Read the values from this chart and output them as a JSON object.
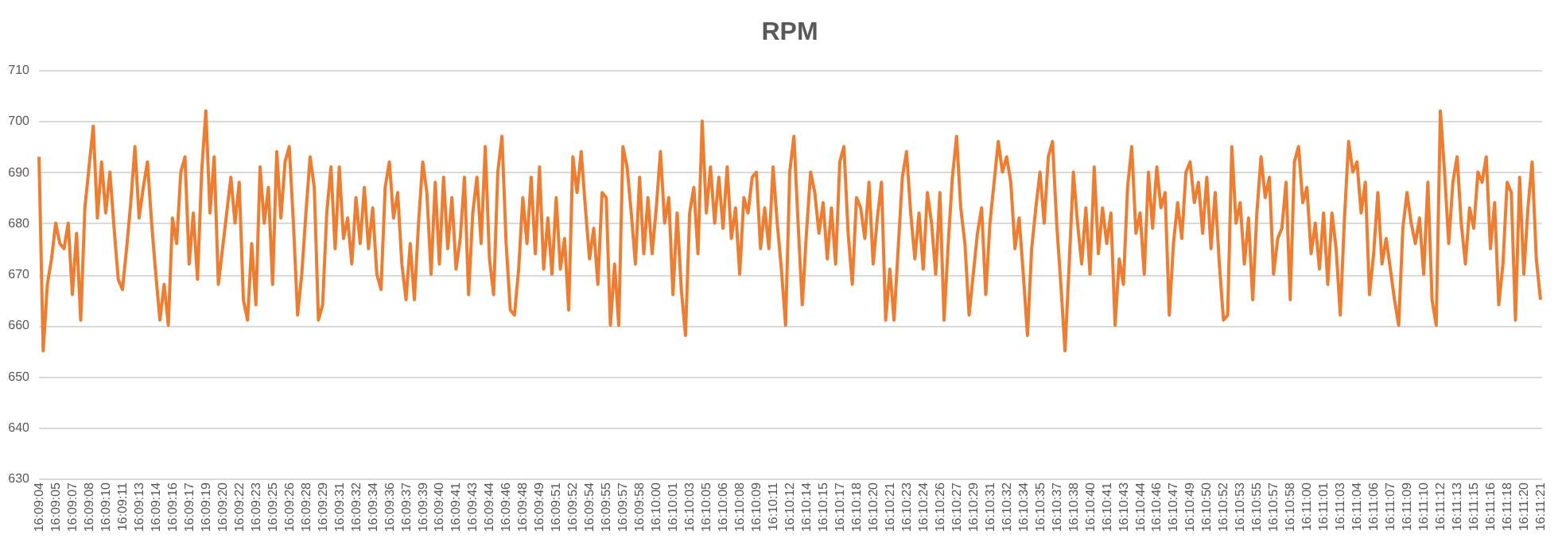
{
  "chart_data": {
    "type": "line",
    "title": "RPM",
    "categories": [
      "16:09:04",
      null,
      null,
      null,
      "16:09:05",
      null,
      null,
      null,
      "16:09:07",
      null,
      null,
      null,
      "16:09:08",
      null,
      null,
      null,
      "16:09:10",
      null,
      null,
      null,
      "16:09:11",
      null,
      null,
      null,
      "16:09:13",
      null,
      null,
      null,
      "16:09:14",
      null,
      null,
      null,
      "16:09:16",
      null,
      null,
      null,
      "16:09:17",
      null,
      null,
      null,
      "16:09:19",
      null,
      null,
      null,
      "16:09:20",
      null,
      null,
      null,
      "16:09:22",
      null,
      null,
      null,
      "16:09:23",
      null,
      null,
      null,
      "16:09:25",
      null,
      null,
      null,
      "16:09:26",
      null,
      null,
      null,
      "16:09:28",
      null,
      null,
      null,
      "16:09:29",
      null,
      null,
      null,
      "16:09:31",
      null,
      null,
      null,
      "16:09:32",
      null,
      null,
      null,
      "16:09:34",
      null,
      null,
      null,
      "16:09:36",
      null,
      null,
      null,
      "16:09:37",
      null,
      null,
      null,
      "16:09:39",
      null,
      null,
      null,
      "16:09:40",
      null,
      null,
      null,
      "16:09:41",
      null,
      null,
      null,
      "16:09:43",
      null,
      null,
      null,
      "16:09:44",
      null,
      null,
      null,
      "16:09:46",
      null,
      null,
      null,
      "16:09:48",
      null,
      null,
      null,
      "16:09:49",
      null,
      null,
      null,
      "16:09:51",
      null,
      null,
      null,
      "16:09:52",
      null,
      null,
      null,
      "16:09:54",
      null,
      null,
      null,
      "16:09:55",
      null,
      null,
      null,
      "16:09:57",
      null,
      null,
      null,
      "16:09:58",
      null,
      null,
      null,
      "16:10:00",
      null,
      null,
      null,
      "16:10:01",
      null,
      null,
      null,
      "16:10:03",
      null,
      null,
      null,
      "16:10:05",
      null,
      null,
      null,
      "16:10:06",
      null,
      null,
      null,
      "16:10:08",
      null,
      null,
      null,
      "16:10:09",
      null,
      null,
      null,
      "16:10:11",
      null,
      null,
      null,
      "16:10:12",
      null,
      null,
      null,
      "16:10:14",
      null,
      null,
      null,
      "16:10:15",
      null,
      null,
      null,
      "16:10:17",
      null,
      null,
      null,
      "16:10:18",
      null,
      null,
      null,
      "16:10:20",
      null,
      null,
      null,
      "16:10:21",
      null,
      null,
      null,
      "16:10:23",
      null,
      null,
      null,
      "16:10:24",
      null,
      null,
      null,
      "16:10:26",
      null,
      null,
      null,
      "16:10:27",
      null,
      null,
      null,
      "16:10:29",
      null,
      null,
      null,
      "16:10:31",
      null,
      null,
      null,
      "16:10:32",
      null,
      null,
      null,
      "16:10:34",
      null,
      null,
      null,
      "16:10:35",
      null,
      null,
      null,
      "16:10:37",
      null,
      null,
      null,
      "16:10:38",
      null,
      null,
      null,
      "16:10:40",
      null,
      null,
      null,
      "16:10:41",
      null,
      null,
      null,
      "16:10:43",
      null,
      null,
      null,
      "16:10:44",
      null,
      null,
      null,
      "16:10:46",
      null,
      null,
      null,
      "16:10:47",
      null,
      null,
      null,
      "16:10:49",
      null,
      null,
      null,
      "16:10:50",
      null,
      null,
      null,
      "16:10:52",
      null,
      null,
      null,
      "16:10:53",
      null,
      null,
      null,
      "16:10:55",
      null,
      null,
      null,
      "16:10:57",
      null,
      null,
      null,
      "16:10:58",
      null,
      null,
      null,
      "16:11:00",
      null,
      null,
      null,
      "16:11:01",
      null,
      null,
      null,
      "16:11:03",
      null,
      null,
      null,
      "16:11:04",
      null,
      null,
      null,
      "16:11:06",
      null,
      null,
      null,
      "16:11:07",
      null,
      null,
      null,
      "16:11:09",
      null,
      null,
      null,
      "16:11:10",
      null,
      null,
      null,
      "16:11:12",
      null,
      null,
      null,
      "16:11:13",
      null,
      null,
      null,
      "16:11:15",
      null,
      null,
      null,
      "16:11:16",
      null,
      null,
      null,
      "16:11:18",
      null,
      null,
      null,
      "16:11:20",
      null,
      null,
      null,
      "16:11:21"
    ],
    "series": [
      {
        "color": "#ed7d31",
        "values": [
          693,
          655,
          668,
          673,
          680,
          676,
          675,
          680,
          666,
          678,
          661,
          683,
          691,
          699,
          681,
          692,
          682,
          690,
          679,
          669,
          667,
          675,
          684,
          695,
          681,
          687,
          692,
          680,
          670,
          661,
          668,
          660,
          681,
          676,
          690,
          693,
          672,
          682,
          669,
          690,
          702,
          682,
          693,
          668,
          675,
          682,
          689,
          680,
          688,
          665,
          661,
          676,
          664,
          691,
          680,
          687,
          668,
          694,
          681,
          692,
          695,
          680,
          662,
          670,
          682,
          693,
          687,
          661,
          664,
          682,
          691,
          675,
          691,
          677,
          681,
          672,
          685,
          676,
          687,
          675,
          683,
          670,
          667,
          687,
          692,
          681,
          686,
          672,
          665,
          676,
          665,
          680,
          692,
          686,
          670,
          688,
          672,
          689,
          675,
          685,
          671,
          677,
          689,
          666,
          682,
          689,
          676,
          695,
          673,
          666,
          690,
          697,
          676,
          663,
          662,
          671,
          685,
          676,
          689,
          674,
          691,
          671,
          681,
          670,
          685,
          671,
          677,
          663,
          693,
          686,
          694,
          683,
          673,
          679,
          668,
          686,
          685,
          660,
          672,
          660,
          695,
          691,
          682,
          672,
          689,
          674,
          685,
          674,
          683,
          694,
          680,
          685,
          666,
          682,
          667,
          658,
          682,
          687,
          674,
          700,
          682,
          691,
          680,
          689,
          679,
          691,
          677,
          683,
          670,
          685,
          682,
          689,
          690,
          675,
          683,
          675,
          691,
          680,
          671,
          660,
          690,
          697,
          680,
          664,
          678,
          690,
          686,
          678,
          684,
          673,
          683,
          672,
          692,
          695,
          678,
          668,
          685,
          683,
          677,
          688,
          672,
          681,
          688,
          661,
          671,
          661,
          675,
          689,
          694,
          682,
          673,
          682,
          671,
          686,
          680,
          670,
          686,
          661,
          676,
          689,
          697,
          683,
          676,
          662,
          670,
          678,
          683,
          666,
          680,
          688,
          696,
          690,
          693,
          688,
          675,
          681,
          670,
          658,
          675,
          683,
          690,
          680,
          693,
          696,
          680,
          668,
          655,
          672,
          690,
          680,
          672,
          683,
          670,
          691,
          674,
          683,
          676,
          682,
          660,
          673,
          668,
          687,
          695,
          678,
          682,
          670,
          690,
          679,
          691,
          683,
          686,
          662,
          676,
          684,
          677,
          690,
          692,
          684,
          688,
          678,
          689,
          675,
          686,
          672,
          661,
          662,
          695,
          680,
          684,
          672,
          681,
          665,
          682,
          693,
          685,
          689,
          670,
          677,
          679,
          688,
          665,
          692,
          695,
          684,
          687,
          674,
          680,
          671,
          682,
          668,
          682,
          675,
          662,
          681,
          696,
          690,
          692,
          682,
          688,
          666,
          674,
          686,
          672,
          677,
          671,
          665,
          660,
          679,
          686,
          680,
          676,
          681,
          670,
          688,
          665,
          660,
          702,
          690,
          676,
          688,
          693,
          680,
          672,
          683,
          679,
          690,
          688,
          693,
          675,
          684,
          664,
          672,
          688,
          686,
          661,
          689,
          670,
          683,
          692,
          673,
          665
        ]
      }
    ],
    "ylim": [
      630,
      710
    ],
    "yticks": [
      630,
      640,
      650,
      660,
      670,
      680,
      690,
      700,
      710
    ],
    "grid": "y"
  }
}
